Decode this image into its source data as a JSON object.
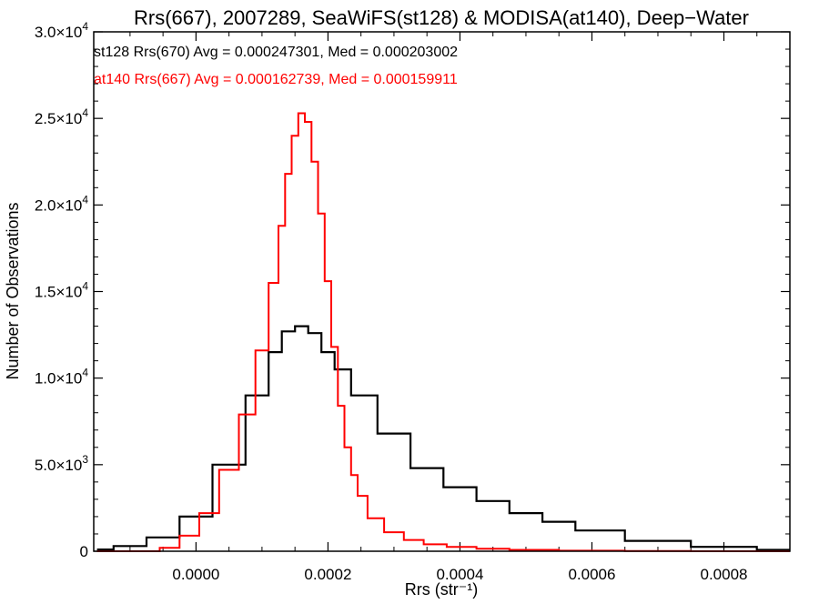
{
  "chart_data": {
    "type": "line",
    "title": "Rrs(667), 2007289, SeaWiFS(st128) & MODISA(at140), Deep−Water",
    "xlabel": "Rrs (str⁻¹)",
    "ylabel": "Number of Observations",
    "xlim": [
      -0.000155,
      0.0009
    ],
    "ylim": [
      0,
      30000
    ],
    "x_ticks": [
      {
        "value": 0.0,
        "label": "0.0000"
      },
      {
        "value": 0.0002,
        "label": "0.0002"
      },
      {
        "value": 0.0004,
        "label": "0.0004"
      },
      {
        "value": 0.0006,
        "label": "0.0006"
      },
      {
        "value": 0.0008,
        "label": "0.0008"
      }
    ],
    "y_ticks": [
      {
        "value": 0,
        "mant": "0",
        "exp": ""
      },
      {
        "value": 5000,
        "mant": "5.0×10",
        "exp": "3"
      },
      {
        "value": 10000,
        "mant": "1.0×10",
        "exp": "4"
      },
      {
        "value": 15000,
        "mant": "1.5×10",
        "exp": "4"
      },
      {
        "value": 20000,
        "mant": "2.0×10",
        "exp": "4"
      },
      {
        "value": 25000,
        "mant": "2.5×10",
        "exp": "4"
      },
      {
        "value": 30000,
        "mant": "3.0×10",
        "exp": "4"
      }
    ],
    "annotations": [
      {
        "text": "st128 Rrs(670) Avg = 0.000247301, Med = 0.000203002",
        "color": "#000000"
      },
      {
        "text": "at140 Rrs(667) Avg = 0.000162739, Med = 0.000159911",
        "color": "#ff0000"
      }
    ],
    "series": [
      {
        "color": "#000000",
        "x": [
          -0.00015,
          -0.0001,
          -5e-05,
          0.0,
          5e-05,
          0.0001,
          0.00012,
          0.00014,
          0.00016,
          0.00018,
          0.0002,
          0.00022,
          0.00025,
          0.0003,
          0.00035,
          0.0004,
          0.00045,
          0.0005,
          0.00055,
          0.0006,
          0.0007,
          0.0008,
          0.0009
        ],
        "y": [
          100,
          300,
          800,
          2000,
          5000,
          9000,
          11500,
          12700,
          13000,
          12600,
          11500,
          10500,
          9000,
          6800,
          4800,
          3700,
          2900,
          2200,
          1700,
          1200,
          600,
          250,
          80
        ]
      },
      {
        "color": "#ff0000",
        "x": [
          -0.00015,
          -0.0001,
          -7e-05,
          -4e-05,
          -1e-05,
          2e-05,
          5e-05,
          8e-05,
          0.0001,
          0.00012,
          0.00013,
          0.00014,
          0.00015,
          0.00016,
          0.00017,
          0.00018,
          0.00019,
          0.0002,
          0.00021,
          0.00022,
          0.00023,
          0.00024,
          0.00025,
          0.00027,
          0.0003,
          0.00033,
          0.00036,
          0.0004,
          0.00045,
          0.0005,
          0.0006,
          0.0007,
          0.0008,
          0.0009
        ],
        "y": [
          0,
          0,
          0,
          200,
          900,
          2200,
          4700,
          7900,
          11600,
          15500,
          18800,
          21800,
          24000,
          25300,
          24800,
          22500,
          19500,
          15600,
          11800,
          8400,
          6000,
          4400,
          3200,
          1900,
          1100,
          650,
          400,
          250,
          140,
          80,
          30,
          10,
          0,
          0
        ]
      }
    ]
  }
}
